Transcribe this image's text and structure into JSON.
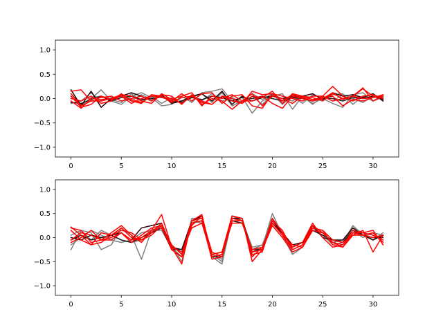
{
  "figure": {
    "background": "#ffffff"
  },
  "chart_data": [
    {
      "type": "line",
      "title": "",
      "xlabel": "",
      "ylabel": "",
      "xlim": [
        -1.55,
        32.55
      ],
      "ylim": [
        -1.2,
        1.2
      ],
      "xticks": [
        0,
        5,
        10,
        15,
        20,
        25,
        30
      ],
      "yticks": [
        -1.0,
        -0.5,
        0.0,
        0.5,
        1.0
      ],
      "ytick_labels": [
        "−1.0",
        "−0.5",
        "0.0",
        "0.5",
        "1.0"
      ],
      "grid": false,
      "legend": null,
      "x": [
        0,
        1,
        2,
        3,
        4,
        5,
        6,
        7,
        8,
        9,
        10,
        11,
        12,
        13,
        14,
        15,
        16,
        17,
        18,
        19,
        20,
        21,
        22,
        23,
        24,
        25,
        26,
        27,
        28,
        29,
        30,
        31
      ],
      "series": [
        {
          "color": "#808080",
          "values": [
            0.1,
            -0.12,
            0.0,
            0.18,
            -0.05,
            -0.12,
            0.05,
            0.12,
            0.02,
            -0.15,
            -0.12,
            0.05,
            -0.08,
            0.12,
            0.15,
            0.2,
            -0.05,
            0.03,
            -0.3,
            -0.05,
            0.05,
            0.1,
            -0.22,
            0.05,
            -0.1,
            0.0,
            0.08,
            0.1,
            -0.12,
            0.05,
            -0.05,
            0.03
          ]
        },
        {
          "color": "#808080",
          "values": [
            -0.1,
            -0.05,
            0.12,
            -0.05,
            0.02,
            0.05,
            -0.05,
            0.08,
            -0.02,
            0.05,
            -0.02,
            -0.1,
            0.05,
            -0.05,
            0.1,
            -0.05,
            0.02,
            -0.08,
            0.05,
            -0.12,
            0.08,
            0.0,
            -0.05,
            0.05,
            -0.12,
            0.05,
            -0.05,
            0.08,
            0.0,
            -0.08,
            0.05,
            0.02
          ]
        },
        {
          "color": "#808080",
          "values": [
            0.05,
            -0.15,
            0.02,
            0.05,
            -0.02,
            -0.08,
            0.1,
            -0.05,
            0.05,
            -0.1,
            0.02,
            -0.05,
            0.02,
            0.1,
            -0.08,
            0.12,
            -0.15,
            -0.05,
            0.1,
            -0.02,
            0.1,
            -0.12,
            0.05,
            -0.1,
            0.08,
            0.0,
            -0.1,
            -0.18,
            0.08,
            0.12,
            -0.05,
            0.08
          ]
        },
        {
          "color": "#2a0000",
          "values": [
            0.18,
            -0.15,
            0.15,
            -0.18,
            0.0,
            0.05,
            0.12,
            0.05,
            -0.05,
            0.08,
            -0.1,
            -0.05,
            0.05,
            0.1,
            -0.05,
            0.15,
            -0.12,
            0.05,
            -0.05,
            0.02,
            0.05,
            0.0,
            0.05,
            0.05,
            0.1,
            -0.02,
            0.12,
            0.05,
            0.08,
            0.02,
            0.1,
            -0.05
          ]
        },
        {
          "color": "#1a1a1a",
          "values": [
            -0.08,
            -0.1,
            -0.02,
            0.05,
            -0.05,
            0.02,
            0.05,
            -0.02,
            0.0,
            0.03,
            -0.05,
            -0.08,
            0.02,
            -0.02,
            0.05,
            0.02,
            -0.05,
            0.02,
            0.0,
            0.05,
            0.0,
            -0.05,
            0.02,
            0.0,
            -0.05,
            0.02,
            0.0,
            -0.05,
            0.02,
            0.0,
            0.05,
            -0.02
          ]
        },
        {
          "color": "#ff0000",
          "values": [
            0.15,
            0.18,
            -0.05,
            -0.05,
            0.0,
            0.08,
            0.05,
            -0.05,
            -0.1,
            0.1,
            -0.02,
            0.05,
            0.12,
            -0.15,
            0.05,
            0.0,
            0.08,
            -0.05,
            0.1,
            -0.15,
            0.05,
            0.0,
            -0.1,
            0.05,
            0.02,
            -0.05,
            0.1,
            0.0,
            0.05,
            0.2,
            0.05,
            0.0
          ]
        },
        {
          "color": "#ff0000",
          "values": [
            0.05,
            -0.18,
            -0.12,
            0.05,
            -0.02,
            0.05,
            -0.1,
            0.0,
            0.05,
            0.02,
            0.0,
            -0.1,
            0.05,
            -0.05,
            -0.12,
            0.05,
            -0.05,
            -0.1,
            0.15,
            0.08,
            0.1,
            -0.05,
            0.08,
            0.02,
            -0.05,
            0.0,
            0.12,
            -0.02,
            0.05,
            0.0,
            0.02,
            0.05
          ]
        },
        {
          "color": "#ff0000",
          "values": [
            0.0,
            -0.05,
            0.05,
            -0.1,
            -0.05,
            0.1,
            -0.05,
            -0.1,
            0.08,
            0.05,
            -0.05,
            0.1,
            -0.05,
            0.1,
            0.12,
            -0.1,
            0.05,
            0.08,
            -0.15,
            -0.2,
            0.1,
            0.05,
            0.0,
            -0.05,
            0.05,
            0.05,
            0.25,
            0.05,
            -0.05,
            0.05,
            0.08,
            0.0
          ]
        },
        {
          "color": "#ff0000",
          "values": [
            -0.05,
            -0.2,
            0.0,
            0.02,
            0.05,
            -0.05,
            0.0,
            0.05,
            -0.05,
            0.08,
            0.05,
            -0.12,
            0.08,
            -0.12,
            0.0,
            -0.05,
            -0.22,
            -0.05,
            -0.05,
            0.05,
            -0.1,
            -0.2,
            0.05,
            0.0,
            -0.05,
            0.05,
            -0.05,
            0.0,
            0.05,
            0.22,
            -0.05,
            0.05
          ]
        },
        {
          "color": "#ff0000",
          "values": [
            0.1,
            -0.15,
            -0.05,
            -0.02,
            0.0,
            0.05,
            -0.02,
            -0.08,
            0.05,
            0.05,
            -0.08,
            0.02,
            0.05,
            -0.08,
            -0.12,
            0.05,
            0.0,
            -0.1,
            0.05,
            0.02,
            0.15,
            -0.1,
            0.1,
            0.05,
            -0.02,
            0.02,
            0.05,
            -0.15,
            -0.02,
            -0.05,
            0.02,
            0.08
          ]
        }
      ]
    },
    {
      "type": "line",
      "title": "",
      "xlabel": "",
      "ylabel": "",
      "xlim": [
        -1.55,
        32.55
      ],
      "ylim": [
        -1.2,
        1.2
      ],
      "xticks": [
        0,
        5,
        10,
        15,
        20,
        25,
        30
      ],
      "yticks": [
        -1.0,
        -0.5,
        0.0,
        0.5,
        1.0
      ],
      "ytick_labels": [
        "−1.0",
        "−0.5",
        "0.0",
        "0.5",
        "1.0"
      ],
      "grid": false,
      "legend": null,
      "x": [
        0,
        1,
        2,
        3,
        4,
        5,
        6,
        7,
        8,
        9,
        10,
        11,
        12,
        13,
        14,
        15,
        16,
        17,
        18,
        19,
        20,
        21,
        22,
        23,
        24,
        25,
        26,
        27,
        28,
        29,
        30,
        31
      ],
      "series": [
        {
          "color": "#808080",
          "values": [
            -0.25,
            0.15,
            0.1,
            -0.25,
            -0.15,
            0.2,
            0.05,
            -0.45,
            0.15,
            0.25,
            -0.2,
            -0.3,
            0.35,
            0.3,
            -0.4,
            -0.55,
            0.4,
            0.35,
            -0.3,
            -0.2,
            0.5,
            0.05,
            -0.35,
            -0.2,
            0.2,
            0.05,
            -0.15,
            -0.1,
            0.25,
            0.05,
            -0.05,
            0.05
          ]
        },
        {
          "color": "#808080",
          "values": [
            0.05,
            0.15,
            -0.05,
            0.15,
            0.05,
            -0.05,
            -0.1,
            -0.05,
            0.1,
            0.25,
            -0.15,
            -0.5,
            0.4,
            0.4,
            -0.35,
            -0.45,
            0.35,
            0.3,
            -0.25,
            -0.15,
            0.3,
            0.1,
            -0.2,
            -0.1,
            0.15,
            0.05,
            -0.1,
            -0.05,
            0.15,
            0.0,
            0.1,
            0.05
          ]
        },
        {
          "color": "#808080",
          "values": [
            -0.15,
            0.0,
            0.15,
            0.05,
            -0.05,
            -0.1,
            -0.05,
            0.1,
            0.15,
            0.15,
            -0.2,
            -0.4,
            0.3,
            0.35,
            -0.35,
            -0.5,
            0.45,
            0.35,
            -0.2,
            -0.15,
            0.4,
            0.05,
            -0.3,
            -0.2,
            0.15,
            0.1,
            -0.1,
            -0.05,
            0.2,
            0.1,
            -0.05,
            0.1
          ]
        },
        {
          "color": "#2a0000",
          "values": [
            0.0,
            -0.05,
            0.05,
            0.0,
            0.05,
            0.1,
            -0.05,
            0.2,
            0.25,
            0.3,
            -0.2,
            -0.25,
            0.35,
            0.45,
            -0.4,
            -0.35,
            0.4,
            0.4,
            -0.3,
            -0.25,
            0.3,
            0.1,
            -0.15,
            -0.1,
            0.25,
            0.0,
            -0.05,
            -0.05,
            0.2,
            0.05,
            -0.05,
            0.05
          ]
        },
        {
          "color": "#1a1a1a",
          "values": [
            -0.05,
            0.05,
            -0.05,
            0.0,
            0.05,
            -0.05,
            -0.1,
            0.0,
            0.1,
            0.2,
            -0.25,
            -0.25,
            0.3,
            0.35,
            -0.4,
            -0.4,
            0.35,
            0.3,
            -0.25,
            -0.25,
            0.35,
            0.1,
            -0.2,
            -0.1,
            0.15,
            0.05,
            -0.05,
            -0.1,
            0.15,
            0.05,
            0.0,
            0.0
          ]
        },
        {
          "color": "#ff0000",
          "values": [
            0.2,
            0.15,
            -0.1,
            -0.05,
            0.1,
            0.25,
            0.05,
            -0.1,
            0.15,
            0.48,
            -0.2,
            -0.55,
            0.35,
            0.48,
            -0.4,
            -0.35,
            0.45,
            0.4,
            -0.5,
            -0.25,
            0.4,
            0.1,
            -0.2,
            -0.1,
            0.3,
            0.0,
            -0.2,
            -0.15,
            0.1,
            0.05,
            0.1,
            -0.1
          ]
        },
        {
          "color": "#ff0000",
          "values": [
            0.22,
            0.05,
            -0.15,
            0.1,
            0.05,
            0.15,
            0.1,
            -0.05,
            0.1,
            0.3,
            -0.25,
            -0.4,
            0.25,
            0.45,
            -0.35,
            -0.3,
            0.45,
            0.4,
            -0.35,
            -0.3,
            0.35,
            0.15,
            -0.25,
            -0.15,
            0.2,
            0.15,
            -0.15,
            -0.2,
            0.05,
            0.15,
            -0.3,
            0.05
          ]
        },
        {
          "color": "#ff0000",
          "values": [
            -0.1,
            0.0,
            0.15,
            -0.05,
            0.0,
            0.1,
            -0.1,
            0.05,
            0.2,
            0.25,
            -0.15,
            -0.35,
            0.35,
            0.4,
            -0.3,
            -0.4,
            0.4,
            0.35,
            -0.4,
            -0.2,
            0.3,
            0.05,
            -0.25,
            -0.15,
            0.25,
            0.1,
            -0.1,
            -0.2,
            0.1,
            0.1,
            0.15,
            -0.15
          ]
        },
        {
          "color": "#ff0000",
          "values": [
            0.15,
            -0.05,
            -0.15,
            -0.1,
            0.05,
            0.2,
            0.0,
            -0.05,
            0.05,
            0.25,
            -0.25,
            -0.4,
            0.3,
            0.35,
            -0.45,
            -0.4,
            0.35,
            0.35,
            -0.3,
            -0.25,
            0.25,
            0.0,
            -0.3,
            -0.2,
            0.2,
            0.15,
            -0.05,
            -0.1,
            0.05,
            0.05,
            0.0,
            0.05
          ]
        },
        {
          "color": "#ff0000",
          "values": [
            -0.05,
            0.1,
            0.05,
            -0.05,
            -0.05,
            0.1,
            -0.05,
            0.0,
            0.15,
            0.2,
            -0.2,
            -0.3,
            0.2,
            0.3,
            -0.35,
            -0.3,
            0.3,
            0.3,
            -0.25,
            -0.2,
            0.3,
            0.05,
            -0.15,
            -0.2,
            0.15,
            0.1,
            -0.1,
            -0.15,
            0.15,
            0.1,
            0.05,
            -0.05
          ]
        }
      ]
    }
  ]
}
